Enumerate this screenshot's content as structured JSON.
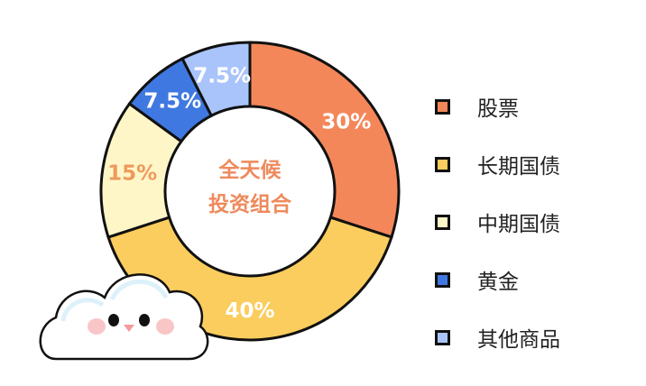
{
  "chart_data": {
    "type": "pie",
    "donut": true,
    "title": "全天候投资组合",
    "title_lines": [
      "全天候",
      "投资组合"
    ],
    "categories": [
      "股票",
      "长期国债",
      "中期国债",
      "黄金",
      "其他商品"
    ],
    "values": [
      30,
      40,
      15,
      7.5,
      7.5
    ],
    "labels": [
      "30%",
      "40%",
      "15%",
      "7.5%",
      "7.5%"
    ],
    "colors": [
      "#F4875A",
      "#FBCD5E",
      "#FFF6C8",
      "#3F78E0",
      "#A9C4FA"
    ],
    "label_colors": [
      "#ffffff",
      "#ffffff",
      "#EE9A5C",
      "#ffffff",
      "#ffffff"
    ],
    "legend_position": "right"
  }
}
